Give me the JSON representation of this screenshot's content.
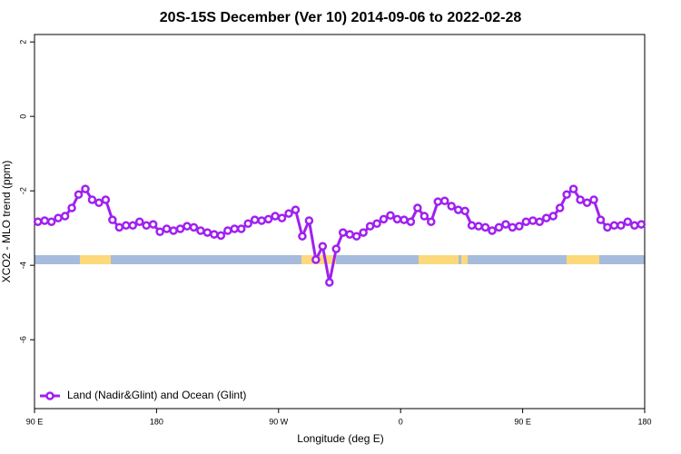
{
  "chart_data": {
    "type": "line",
    "title": "20S-15S December (Ver 10)   2014-09-06 to 2022-02-28",
    "xlabel": "Longitude (deg E)",
    "ylabel": "XCO2 - MLO trend (ppm)",
    "x": [
      92.5,
      97.5,
      102.5,
      107.5,
      112.5,
      117.5,
      122.5,
      127.5,
      132.5,
      137.5,
      142.5,
      147.5,
      152.5,
      157.5,
      162.5,
      167.5,
      172.5,
      177.5,
      182.5,
      187.5,
      192.5,
      197.5,
      202.5,
      207.5,
      212.5,
      217.5,
      222.5,
      227.5,
      232.5,
      237.5,
      242.5,
      247.5,
      252.5,
      257.5,
      262.5,
      267.5,
      272.5,
      277.5,
      282.5,
      287.5,
      292.5,
      297.5,
      302.5,
      307.5,
      312.5,
      317.5,
      322.5,
      327.5,
      332.5,
      337.5,
      342.5,
      347.5,
      352.5,
      357.5,
      362.5,
      367.5,
      372.5,
      377.5,
      382.5,
      387.5,
      392.5,
      397.5,
      402.5,
      407.5,
      412.5,
      417.5,
      422.5,
      427.5,
      432.5,
      437.5,
      442.5,
      447.5,
      452.5,
      457.5,
      462.5,
      467.5,
      472.5,
      477.5,
      482.5,
      487.5,
      492.5,
      497.5,
      502.5,
      507.5,
      512.5,
      517.5,
      522.5,
      527.5,
      532.5,
      537.5
    ],
    "series": [
      {
        "name": "Land (Nadir&Glint) and Ocean (Glint)",
        "color": "#a020f0",
        "values": [
          -2.83,
          -2.8,
          -2.83,
          -2.73,
          -2.68,
          -2.46,
          -2.1,
          -1.95,
          -2.24,
          -2.32,
          -2.24,
          -2.78,
          -2.98,
          -2.93,
          -2.93,
          -2.83,
          -2.93,
          -2.9,
          -3.1,
          -3.02,
          -3.07,
          -3.02,
          -2.95,
          -2.98,
          -3.07,
          -3.12,
          -3.17,
          -3.2,
          -3.07,
          -3.02,
          -3.02,
          -2.88,
          -2.78,
          -2.8,
          -2.76,
          -2.68,
          -2.73,
          -2.61,
          -2.51,
          -3.22,
          -2.8,
          -3.85,
          -3.49,
          -4.46,
          -3.56,
          -3.12,
          -3.17,
          -3.22,
          -3.12,
          -2.95,
          -2.88,
          -2.76,
          -2.66,
          -2.76,
          -2.78,
          -2.83,
          -2.46,
          -2.68,
          -2.83,
          -2.29,
          -2.27,
          -2.41,
          -2.51,
          -2.54,
          -2.93,
          -2.95,
          -2.98,
          -3.07,
          -2.98,
          -2.9,
          -2.98,
          -2.95,
          -2.83,
          -2.8,
          -2.83,
          -2.73,
          -2.68,
          -2.46,
          -2.1,
          -1.95,
          -2.24,
          -2.32,
          -2.24,
          -2.78,
          -2.98,
          -2.93,
          -2.93,
          -2.83,
          -2.93,
          -2.9
        ]
      }
    ],
    "xlim": [
      90,
      540
    ],
    "xticks": [
      {
        "value": 90,
        "label": "90 E"
      },
      180,
      {
        "value": 270,
        "label": "90 W"
      },
      {
        "value": 360,
        "label": "0"
      },
      {
        "value": 450,
        "label": "90 E"
      },
      {
        "value": 540,
        "label": "180"
      }
    ],
    "ylim": [
      -7.85,
      2.2
    ],
    "yticks": [
      2,
      0,
      -2,
      -4,
      -6
    ],
    "legend": "bottom-left"
  }
}
